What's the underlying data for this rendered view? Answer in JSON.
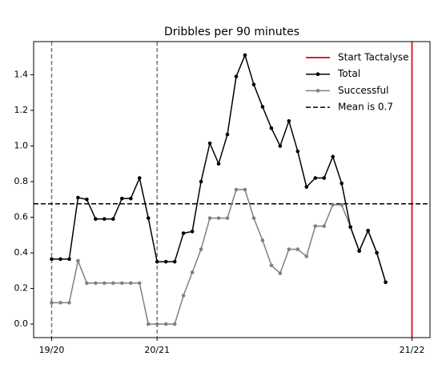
{
  "chart_data": {
    "type": "line",
    "title": "Dribbles per 90 minutes",
    "x": [
      0,
      1,
      2,
      3,
      4,
      5,
      6,
      7,
      8,
      9,
      10,
      11,
      12,
      13,
      14,
      15,
      16,
      17,
      18,
      19,
      20,
      21,
      22,
      23,
      24,
      25,
      26,
      27,
      28,
      29,
      30,
      31,
      32,
      33,
      34,
      35,
      36,
      37,
      38
    ],
    "series": [
      {
        "name": "Total",
        "color": "#000000",
        "values": [
          0.365,
          0.365,
          0.365,
          0.71,
          0.7,
          0.59,
          0.59,
          0.59,
          0.705,
          0.705,
          0.82,
          0.595,
          0.35,
          0.35,
          0.35,
          0.51,
          0.52,
          0.8,
          1.015,
          0.9,
          1.065,
          1.39,
          1.51,
          1.345,
          1.22,
          1.1,
          1.0,
          1.14,
          0.97,
          0.77,
          0.82,
          0.82,
          0.94,
          0.79,
          0.545,
          0.41,
          0.525,
          0.4,
          0.235
        ]
      },
      {
        "name": "Successful",
        "color": "#808080",
        "values": [
          0.12,
          0.12,
          0.12,
          0.355,
          0.23,
          0.23,
          0.23,
          0.23,
          0.23,
          0.23,
          0.23,
          0,
          0,
          0,
          0,
          0.16,
          0.29,
          0.42,
          0.595,
          0.595,
          0.595,
          0.755,
          0.755,
          0.595,
          0.47,
          0.33,
          0.285,
          0.42,
          0.42,
          0.38,
          0.55,
          0.55,
          0.67,
          0.67,
          0.545,
          0.41,
          0.525,
          0.4,
          0.235
        ]
      }
    ],
    "start_line": {
      "name": "Start Tactalyse",
      "x": 41,
      "color": "#d62728"
    },
    "season_lines": [
      0,
      12
    ],
    "mean_line": {
      "name": "Mean is 0.7",
      "value": 0.675
    },
    "xlim": [
      -2.05,
      43.05
    ],
    "ylim": [
      -0.076,
      1.586
    ],
    "xticks": [
      {
        "value": 0,
        "label": "19/20"
      },
      {
        "value": 12,
        "label": "20/21"
      },
      {
        "value": 41,
        "label": "21/22"
      }
    ],
    "yticks": [
      {
        "value": 0,
        "label": "0.0"
      },
      0.2,
      0.4,
      0.6,
      0.8,
      {
        "value": 1,
        "label": "1.0"
      },
      1.2,
      1.4
    ],
    "legend": "upper right"
  }
}
